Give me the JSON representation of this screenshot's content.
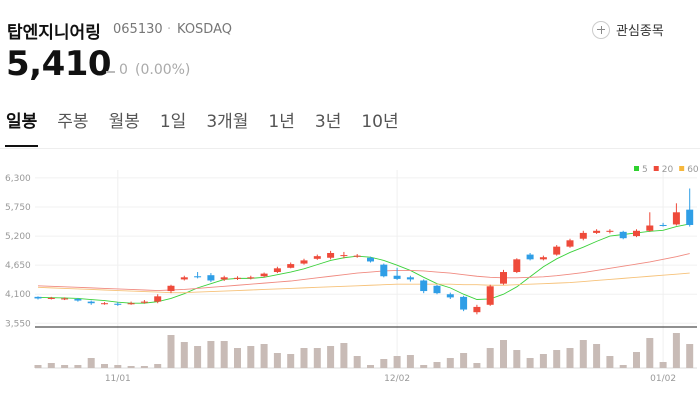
{
  "header": {
    "name": "탑엔지니어링",
    "code": "065130",
    "market": "KOSDAQ",
    "watch": "관심종목"
  },
  "price": {
    "value": "5,410",
    "change": "0",
    "change_pct": "(0.00%)"
  },
  "tabs": [
    "일봉",
    "주봉",
    "월봉",
    "1일",
    "3개월",
    "1년",
    "3년",
    "10년"
  ],
  "chart_data": {
    "type": "candlestick",
    "up_color": "#ee4a3a",
    "down_color": "#2f9ee6",
    "volume_color": "#c8bbb6",
    "grid": true,
    "categories": [
      null,
      null,
      null,
      null,
      null,
      null,
      "11/01",
      null,
      null,
      null,
      null,
      null,
      null,
      null,
      null,
      null,
      null,
      null,
      null,
      null,
      null,
      null,
      null,
      null,
      null,
      null,
      null,
      "12/02",
      null,
      null,
      null,
      null,
      null,
      null,
      null,
      null,
      null,
      null,
      null,
      null,
      null,
      null,
      null,
      null,
      null,
      null,
      null,
      "01/02",
      null,
      null
    ],
    "open": [
      4050,
      4010,
      4010,
      4010,
      3960,
      3920,
      3920,
      3910,
      3940,
      3960,
      4160,
      4380,
      4440,
      4460,
      4380,
      4390,
      4400,
      4440,
      4520,
      4600,
      4680,
      4770,
      4790,
      4830,
      4810,
      4790,
      4660,
      4450,
      4420,
      4360,
      4260,
      4100,
      4050,
      3760,
      3900,
      4300,
      4520,
      4850,
      4760,
      4850,
      5000,
      5150,
      5260,
      5280,
      5280,
      5200,
      5300,
      5410,
      5420,
      5700
    ],
    "high": [
      4060,
      4050,
      4040,
      4030,
      3980,
      3950,
      3950,
      3960,
      3990,
      4100,
      4280,
      4450,
      4520,
      4500,
      4450,
      4440,
      4450,
      4510,
      4620,
      4700,
      4770,
      4850,
      4920,
      4900,
      4860,
      4810,
      4680,
      4600,
      4450,
      4380,
      4280,
      4130,
      4070,
      3900,
      4280,
      4560,
      4780,
      4880,
      4830,
      5030,
      5150,
      5300,
      5330,
      5330,
      5300,
      5330,
      5650,
      5450,
      5820,
      6100
    ],
    "low": [
      4000,
      4000,
      3990,
      3960,
      3900,
      3900,
      3880,
      3900,
      3920,
      3930,
      4120,
      4360,
      4400,
      4330,
      4350,
      4370,
      4380,
      4420,
      4500,
      4590,
      4660,
      4750,
      4760,
      4780,
      4790,
      4700,
      4420,
      4370,
      4340,
      4120,
      4100,
      4010,
      3780,
      3720,
      3880,
      4280,
      4500,
      4740,
      4740,
      4830,
      4980,
      5120,
      5240,
      5250,
      5140,
      5180,
      5280,
      5380,
      5400,
      5380
    ],
    "close": [
      4020,
      4030,
      4020,
      3980,
      3930,
      3930,
      3900,
      3930,
      3960,
      4060,
      4260,
      4420,
      4420,
      4360,
      4420,
      4410,
      4420,
      4490,
      4590,
      4670,
      4740,
      4820,
      4880,
      4840,
      4830,
      4720,
      4440,
      4390,
      4380,
      4160,
      4120,
      4040,
      3810,
      3860,
      4250,
      4520,
      4760,
      4760,
      4800,
      5000,
      5120,
      5260,
      5300,
      5300,
      5160,
      5300,
      5400,
      5400,
      5650,
      5410
    ],
    "volume": [
      3,
      5,
      3,
      3,
      10,
      4,
      3,
      2,
      2,
      4,
      33,
      26,
      22,
      27,
      27,
      20,
      22,
      24,
      15,
      14,
      20,
      20,
      22,
      25,
      12,
      3,
      9,
      12,
      13,
      3,
      6,
      10,
      15,
      5,
      20,
      28,
      18,
      10,
      14,
      18,
      20,
      28,
      24,
      12,
      3,
      16,
      30,
      6,
      35,
      24
    ],
    "series": [
      {
        "name": "5",
        "color": "#3bd13b",
        "values": [
          4040,
          4035,
          4030,
          4020,
          4000,
          3980,
          3950,
          3930,
          3930,
          3960,
          4020,
          4110,
          4220,
          4300,
          4380,
          4400,
          4400,
          4420,
          4470,
          4520,
          4580,
          4660,
          4740,
          4790,
          4820,
          4800,
          4740,
          4650,
          4550,
          4420,
          4300,
          4220,
          4100,
          4000,
          4010,
          4100,
          4240,
          4430,
          4620,
          4770,
          4890,
          4990,
          5100,
          5200,
          5230,
          5260,
          5290,
          5310,
          5380,
          5430
        ]
      },
      {
        "name": "20",
        "color": "#f08a80",
        "values": [
          4260,
          4250,
          4240,
          4230,
          4220,
          4210,
          4200,
          4190,
          4180,
          4170,
          4180,
          4190,
          4210,
          4230,
          4250,
          4270,
          4290,
          4310,
          4330,
          4350,
          4380,
          4410,
          4440,
          4470,
          4500,
          4520,
          4540,
          4550,
          4550,
          4540,
          4520,
          4500,
          4470,
          4440,
          4420,
          4410,
          4410,
          4420,
          4430,
          4450,
          4480,
          4510,
          4550,
          4590,
          4630,
          4670,
          4710,
          4760,
          4810,
          4870
        ]
      },
      {
        "name": "60",
        "color": "#f6c27a",
        "values": [
          4230,
          4220,
          4210,
          4200,
          4190,
          4180,
          4170,
          4160,
          4150,
          4140,
          4130,
          4130,
          4140,
          4150,
          4160,
          4170,
          4180,
          4190,
          4200,
          4210,
          4220,
          4230,
          4240,
          4250,
          4260,
          4270,
          4280,
          4290,
          4290,
          4290,
          4290,
          4290,
          4280,
          4280,
          4270,
          4270,
          4280,
          4290,
          4300,
          4310,
          4320,
          4340,
          4360,
          4380,
          4400,
          4420,
          4440,
          4460,
          4480,
          4500
        ]
      }
    ],
    "legend_colors": [
      "#2fd12f",
      "#ee4a3a",
      "#f6b73c"
    ],
    "ylim": [
      3480,
      6450
    ],
    "yticks": [
      {
        "value": 3550,
        "label": "3,550"
      },
      {
        "value": 4100,
        "label": "4,100"
      },
      {
        "value": 4650,
        "label": "4,650"
      },
      {
        "value": 5200,
        "label": "5,200"
      },
      {
        "value": 5750,
        "label": "5,750"
      },
      {
        "value": 6300,
        "label": "6,300"
      }
    ]
  }
}
